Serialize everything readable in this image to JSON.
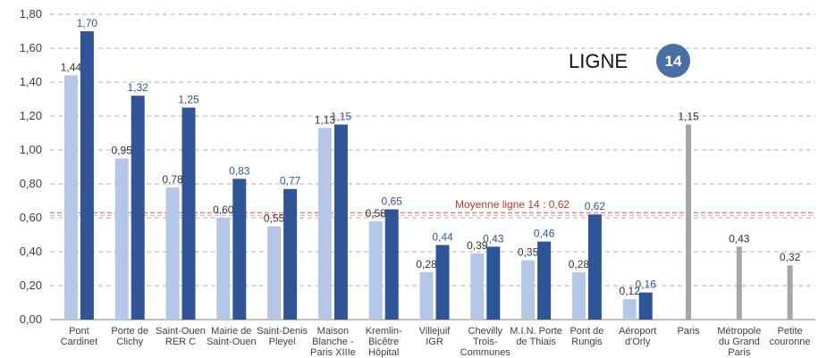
{
  "chart_data": {
    "type": "bar",
    "title": "LIGNE",
    "line_badge": "14",
    "ylim": [
      0,
      1.8
    ],
    "yticks": [
      "0,00",
      "0,20",
      "0,40",
      "0,60",
      "0,80",
      "1,00",
      "1,20",
      "1,40",
      "1,60",
      "1,80"
    ],
    "grid": "horizontal-dashed",
    "categories": [
      [
        "Pont",
        "Cardinet"
      ],
      [
        "Porte de",
        "Clichy"
      ],
      [
        "Saint-Ouen",
        "RER C"
      ],
      [
        "Mairie de",
        "Saint-Ouen"
      ],
      [
        "Saint-Denis",
        "Pleyel"
      ],
      [
        "Maison",
        "Blanche -",
        "Paris XIIIe"
      ],
      [
        "Kremlin-",
        "Bicêtre",
        "Hôpital"
      ],
      [
        "Villejuif",
        "IGR"
      ],
      [
        "Chevilly",
        "Trois-",
        "Communes"
      ],
      [
        "M.I.N. Porte",
        "de Thiais"
      ],
      [
        "Pont de",
        "Rungis"
      ],
      [
        "Aéroport",
        "d'Orly"
      ]
    ],
    "series": [
      {
        "color": "#b4c7e7",
        "values": [
          1.44,
          0.95,
          0.78,
          0.6,
          0.55,
          1.13,
          0.58,
          0.28,
          0.39,
          0.35,
          0.28,
          0.12
        ],
        "labels": [
          "1,44",
          "0,95",
          "0,78",
          "0,60",
          "0,55",
          "1,13",
          "0,58",
          "0,28",
          "0,39",
          "0,35",
          "0,28",
          "0,12"
        ],
        "label_color": "#333333"
      },
      {
        "color": "#2f5597",
        "values": [
          1.7,
          1.32,
          1.25,
          0.83,
          0.77,
          1.15,
          0.65,
          0.44,
          0.43,
          0.46,
          0.62,
          0.16
        ],
        "labels": [
          "1,70",
          "1,32",
          "1,25",
          "0,83",
          "0,77",
          "1,15",
          "0,65",
          "0,44",
          "0,43",
          "0,46",
          "0,62",
          "0,16"
        ],
        "label_color": "#2f5597"
      }
    ],
    "references": {
      "color": "#a6a6a6",
      "items": [
        {
          "category": [
            "Paris"
          ],
          "value": 1.15,
          "label": "1,15"
        },
        {
          "category": [
            "Métropole",
            "du Grand",
            "Paris"
          ],
          "value": 0.43,
          "label": "0,43"
        },
        {
          "category": [
            "Petite",
            "couronne"
          ],
          "value": 0.32,
          "label": "0,32"
        }
      ]
    },
    "average_line": {
      "value": 0.62,
      "label": "Moyenne ligne 14 : 0,62",
      "color": "#c0392b"
    }
  }
}
